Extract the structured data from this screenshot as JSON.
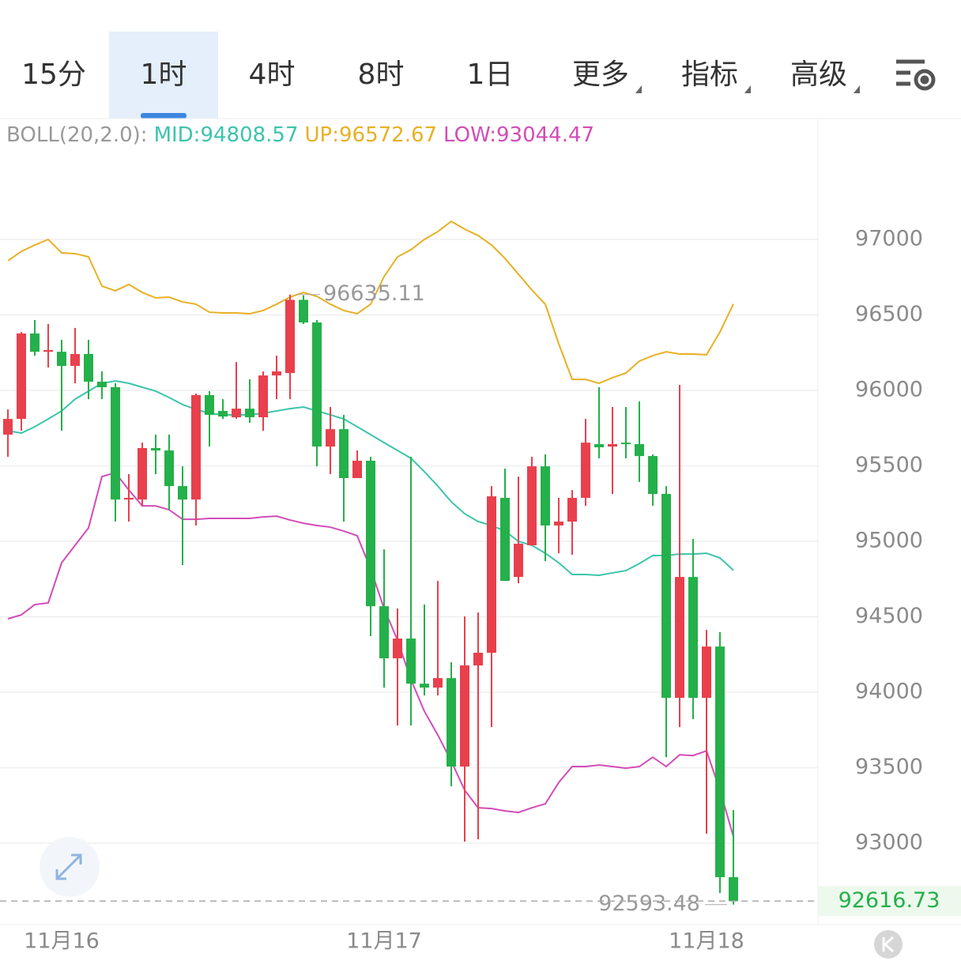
{
  "tabs": [
    "15分",
    "1时",
    "4时",
    "8时",
    "1日",
    "更多",
    "指标",
    "高级"
  ],
  "chart_data": {
    "type": "candlestick",
    "indicator": "BOLL(20,2.0):",
    "categories": [
      null,
      null,
      null,
      null,
      "11月16",
      null,
      null,
      null,
      null,
      null,
      null,
      null,
      null,
      null,
      null,
      null,
      null,
      null,
      null,
      null,
      null,
      null,
      null,
      null,
      null,
      null,
      null,
      null,
      "11月17",
      null,
      null,
      null,
      null,
      null,
      null,
      null,
      null,
      null,
      null,
      null,
      null,
      null,
      null,
      null,
      null,
      null,
      null,
      null,
      null,
      null,
      null,
      null,
      "11月18",
      null,
      null
    ],
    "open": [
      95707,
      95811,
      96377,
      96256,
      96256,
      96162,
      96241,
      96058,
      96021,
      95277,
      95277,
      95618,
      95602,
      95366,
      95277,
      95969,
      95864,
      95822,
      95879,
      95822,
      96099,
      96115,
      96600,
      96450,
      95628,
      95743,
      95419,
      95534,
      94570,
      94225,
      94356,
      94057,
      94031,
      94094,
      93508,
      94178,
      94262,
      95288,
      94764,
      94974,
      95497,
      95105,
      95131,
      95288,
      95644,
      95628,
      95654,
      95644,
      95565,
      95314,
      93963,
      94764,
      93963,
      94303,
      92775
    ],
    "high": [
      95874,
      96387,
      96466,
      96440,
      96335,
      96414,
      96335,
      96126,
      96047,
      95445,
      95654,
      95707,
      95707,
      95497,
      95979,
      95995,
      95942,
      96188,
      96073,
      96126,
      96230,
      96635.11,
      96630,
      96466,
      95890,
      95838,
      95602,
      95560,
      94947,
      94555,
      95560,
      94581,
      94738,
      94199,
      94502,
      94529,
      95366,
      95482,
      95429,
      95560,
      95576,
      95288,
      95340,
      95811,
      96021,
      95890,
      95890,
      95927,
      95576,
      95366,
      96037,
      95016,
      94413,
      94398,
      93220
    ],
    "low": [
      95560,
      95733,
      96230,
      96152,
      95733,
      96047,
      95942,
      95942,
      95131,
      95131,
      95235,
      95445,
      95209,
      94843,
      95105,
      95628,
      95811,
      95811,
      95785,
      95733,
      95942,
      95942,
      96440,
      95497,
      95445,
      95131,
      95419,
      94372,
      94031,
      93780,
      93780,
      93979,
      93979,
      93377,
      93010,
      93026,
      93769,
      94738,
      94722,
      94974,
      94869,
      94921,
      94911,
      95235,
      95550,
      95314,
      95550,
      95393,
      95235,
      93570,
      93769,
      93822,
      93063,
      92670,
      92593.48
    ],
    "close": [
      95811,
      96377,
      96256,
      96267,
      96162,
      96241,
      96058,
      96021,
      95277,
      95288,
      95618,
      95602,
      95366,
      95277,
      95969,
      95838,
      95827,
      95879,
      95822,
      96099,
      96126,
      96600,
      96450,
      95628,
      95743,
      95419,
      95534,
      94570,
      94225,
      94356,
      94057,
      94031,
      94094,
      93508,
      94178,
      94262,
      95298,
      94738,
      94984,
      95497,
      95105,
      95131,
      95288,
      95654,
      95623,
      95644,
      95644,
      95565,
      95314,
      93963,
      94764,
      93963,
      94303,
      92775,
      92616.73
    ],
    "up_color": "#e8404c",
    "down_color": "#24b04a",
    "series": [
      {
        "name": "MID:",
        "color": "#3cc4ac",
        "values": [
          95733,
          95717,
          95759,
          95811,
          95864,
          95942,
          95995,
          96047,
          96063,
          96047,
          96021,
          95995,
          95953,
          95906,
          95874,
          95848,
          95838,
          95838,
          95838,
          95848,
          95864,
          95879,
          95890,
          95864,
          95838,
          95811,
          95759,
          95707,
          95654,
          95602,
          95550,
          95461,
          95366,
          95262,
          95183,
          95131,
          95105,
          95068,
          95000,
          94974,
          94921,
          94858,
          94780,
          94780,
          94775,
          94791,
          94806,
          94853,
          94906,
          94906,
          94916,
          94916,
          94921,
          94890,
          94808.57
        ]
      },
      {
        "name": "UP:",
        "color": "#e8b024",
        "values": [
          96859,
          96921,
          96963,
          97000,
          96911,
          96906,
          96885,
          96691,
          96660,
          96702,
          96649,
          96613,
          96618,
          96586,
          96571,
          96518,
          96513,
          96513,
          96508,
          96529,
          96571,
          96618,
          96649,
          96623,
          96571,
          96529,
          96508,
          96571,
          96754,
          96885,
          96932,
          97000,
          97052,
          97120,
          97068,
          97026,
          96963,
          96874,
          96770,
          96665,
          96571,
          96309,
          96073,
          96073,
          96047,
          96084,
          96115,
          96194,
          96230,
          96256,
          96241,
          96241,
          96236,
          96387,
          96572.67
        ]
      },
      {
        "name": "LOW:",
        "color": "#d24cb8",
        "values": [
          94487,
          94513,
          94581,
          94592,
          94858,
          94974,
          95089,
          95429,
          95455,
          95340,
          95235,
          95235,
          95209,
          95146,
          95146,
          95152,
          95152,
          95152,
          95152,
          95162,
          95167,
          95141,
          95120,
          95105,
          95094,
          95068,
          95037,
          94817,
          94555,
          94345,
          94084,
          93874,
          93717,
          93544,
          93351,
          93235,
          93230,
          93214,
          93204,
          93235,
          93261,
          93403,
          93508,
          93508,
          93518,
          93508,
          93497,
          93508,
          93570,
          93508,
          93586,
          93581,
          93612,
          93351,
          93044.47
        ]
      }
    ],
    "ylim": [
      92461,
      97801
    ],
    "yticks": [
      93000,
      93500,
      94000,
      94500,
      95000,
      95500,
      96000,
      96500,
      97000
    ],
    "grid": true
  }
}
